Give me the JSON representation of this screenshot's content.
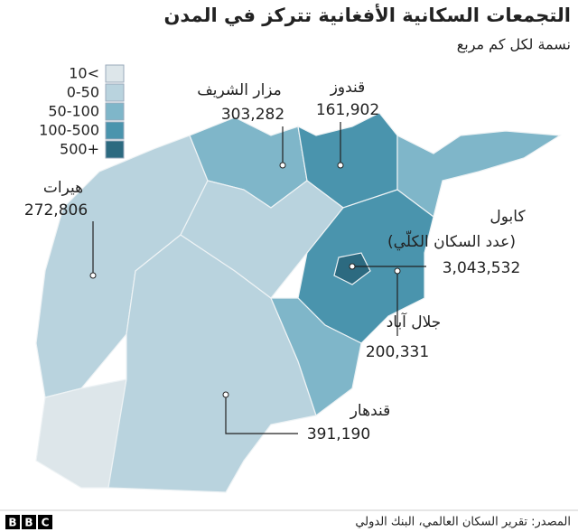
{
  "title": "التجمعات السكانية الأفغانية تتركز في المدن",
  "subtitle": "نسمة لكل كم مربع",
  "legend": [
    {
      "label": "10<",
      "color": "#dde6ea"
    },
    {
      "label": "0-50",
      "color": "#b9d3de"
    },
    {
      "label": "50-100",
      "color": "#7fb6c9"
    },
    {
      "label": "100-500",
      "color": "#4a94ad"
    },
    {
      "label": "500+",
      "color": "#2c6a80"
    }
  ],
  "cities": [
    {
      "name": "مزار الشريف",
      "population": "303,282"
    },
    {
      "name": "قندوز",
      "population": "161,902"
    },
    {
      "name": "هيرات",
      "population": "272,806"
    },
    {
      "name": "كابول",
      "note": "(عدد السكان الكلّي)",
      "population": "3,043,532"
    },
    {
      "name": "جلال آباد",
      "population": "200,331"
    },
    {
      "name": "قندهار",
      "population": "391,190"
    }
  ],
  "source": "المصدر: تقرير السكان العالمي، البنك الدولي",
  "logo": [
    "B",
    "B",
    "C"
  ]
}
